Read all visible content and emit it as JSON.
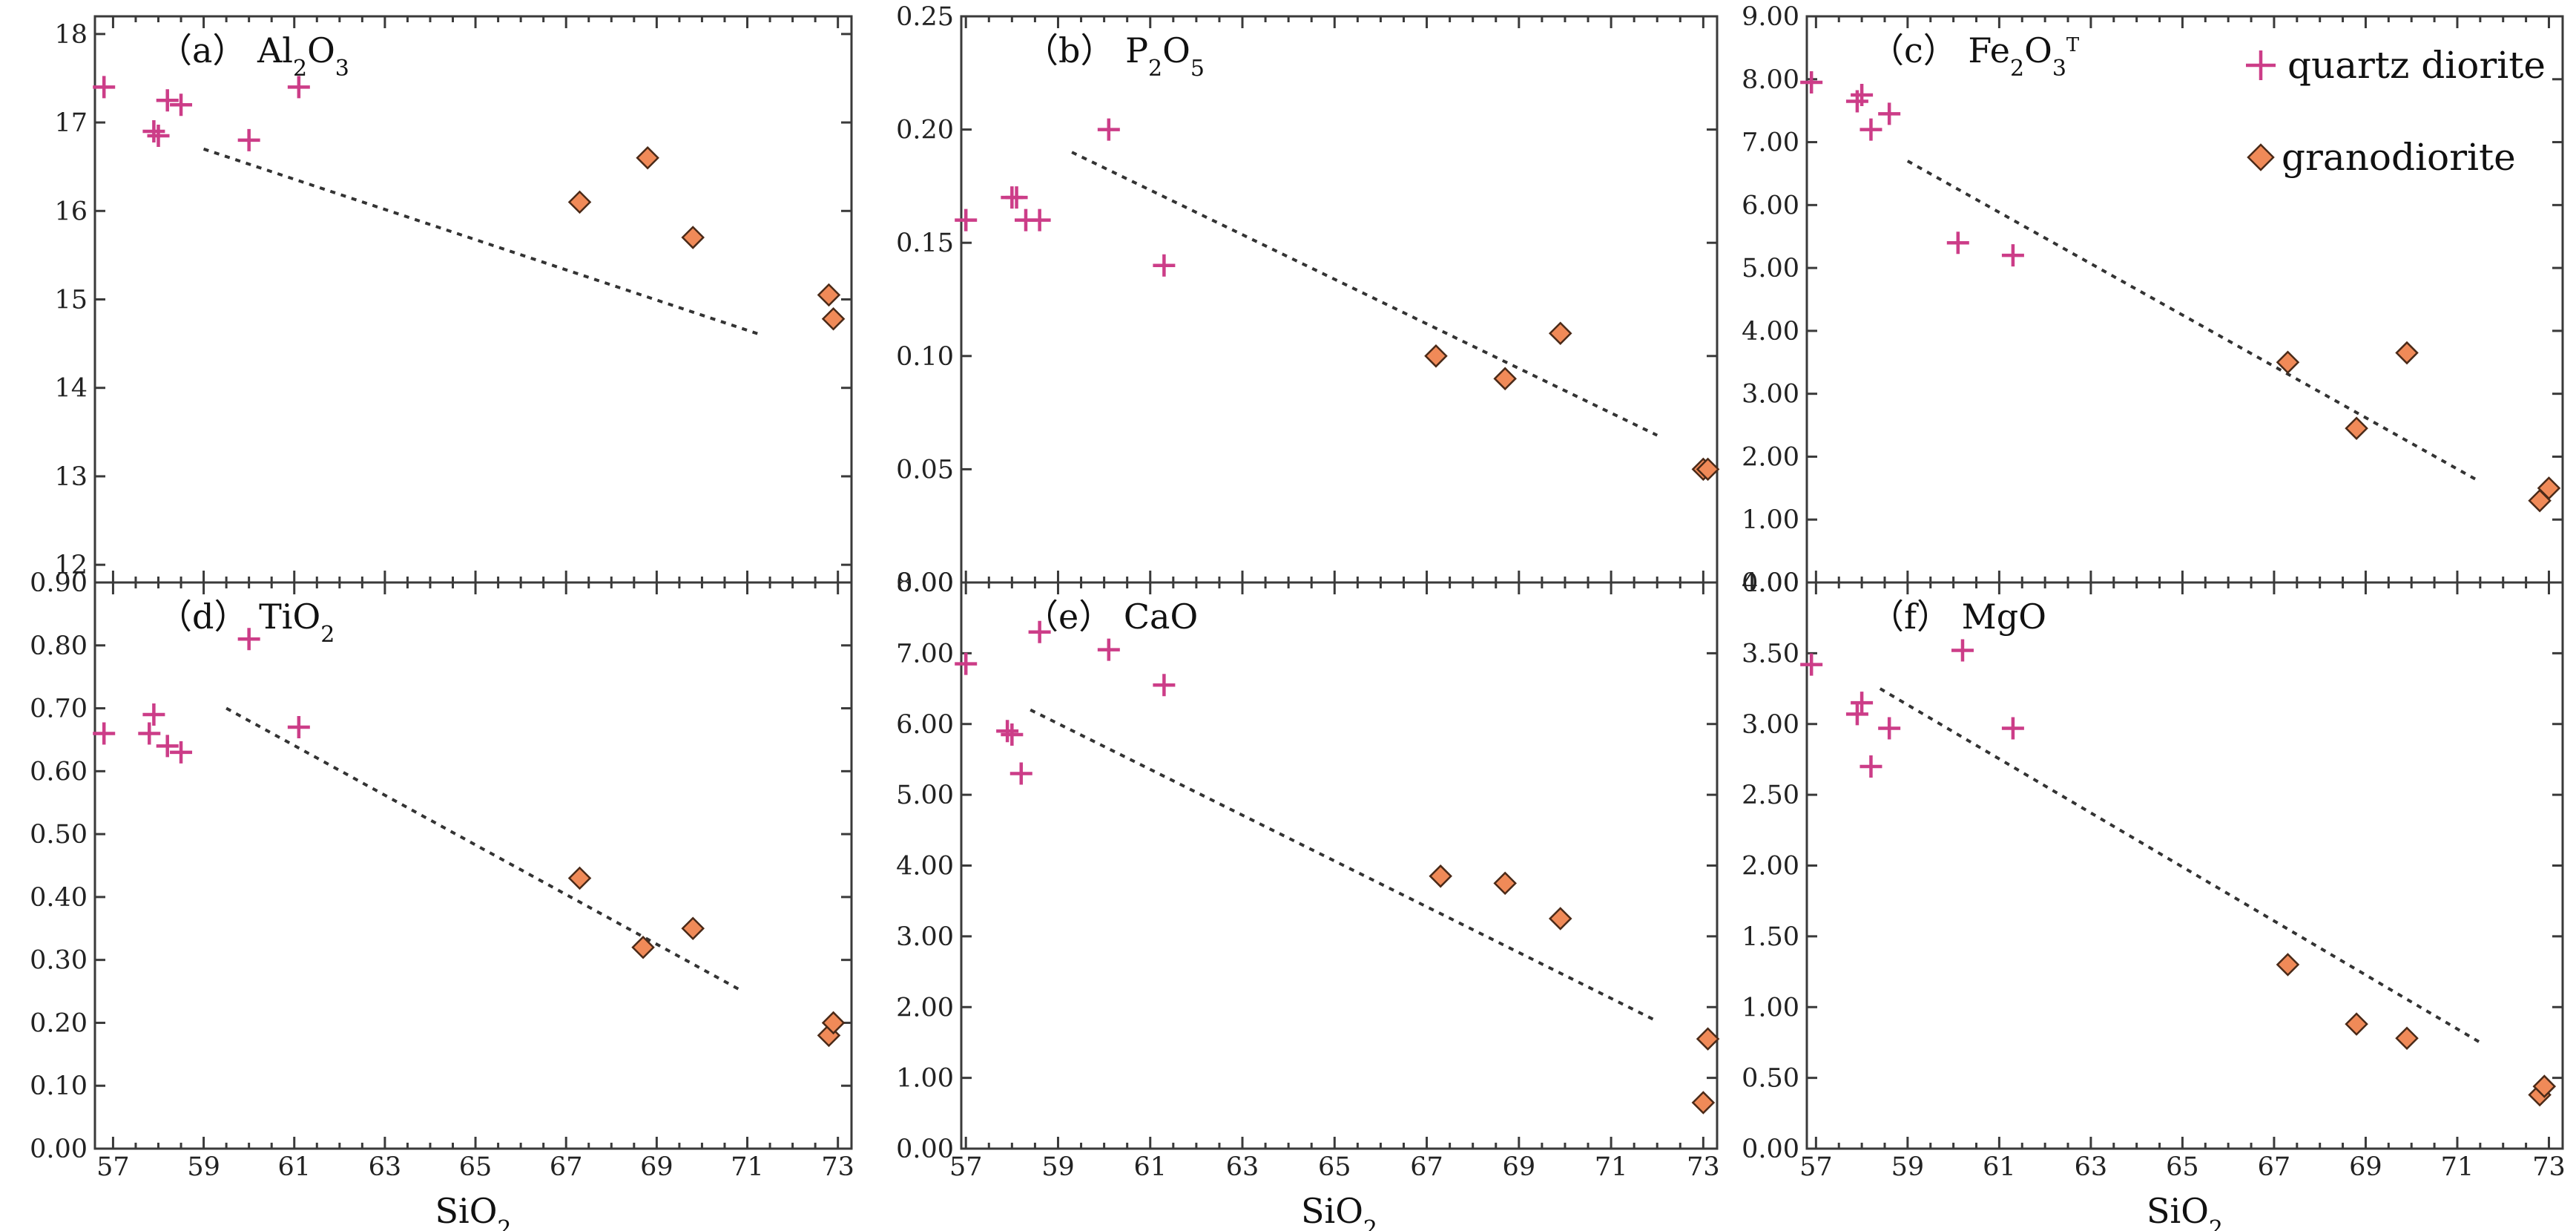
{
  "legend": [
    {
      "label": "quartz diorite",
      "symbol": "plus",
      "color": "#cc3d88"
    },
    {
      "label": "granodiorite",
      "symbol": "diamond",
      "color": "#f08a58"
    }
  ],
  "x_axis_label": {
    "main": "SiO",
    "sub": "2"
  },
  "chart_data": [
    {
      "type": "scatter",
      "panel_label": "（a）",
      "title": [
        {
          "t": "Al"
        },
        {
          "t": "2",
          "s": "sub"
        },
        {
          "t": "O"
        },
        {
          "t": "3",
          "s": "sub"
        }
      ],
      "xlim": [
        56.6,
        73.3
      ],
      "ylim": [
        11.8,
        18.2
      ],
      "xticks": [
        "57",
        "59",
        "61",
        "63",
        "65",
        "67",
        "69",
        "71",
        "73"
      ],
      "yticks": [
        "12",
        "13",
        "14",
        "15",
        "16",
        "17",
        "18"
      ],
      "series": [
        {
          "name": "quartz diorite",
          "points": [
            [
              56.8,
              17.4
            ],
            [
              57.9,
              16.9
            ],
            [
              58.0,
              16.85
            ],
            [
              58.2,
              17.25
            ],
            [
              58.5,
              17.2
            ],
            [
              60.0,
              16.8
            ],
            [
              61.1,
              17.4
            ]
          ]
        },
        {
          "name": "granodiorite",
          "points": [
            [
              67.3,
              16.1
            ],
            [
              68.8,
              16.6
            ],
            [
              69.8,
              15.7
            ],
            [
              72.8,
              15.05
            ],
            [
              72.9,
              14.78
            ]
          ]
        }
      ],
      "trend": [
        [
          59.0,
          16.7
        ],
        [
          71.3,
          14.6
        ]
      ]
    },
    {
      "type": "scatter",
      "panel_label": "（b）",
      "title": [
        {
          "t": "P"
        },
        {
          "t": "2",
          "s": "sub"
        },
        {
          "t": "O"
        },
        {
          "t": "5",
          "s": "sub"
        }
      ],
      "xlim": [
        56.9,
        73.3
      ],
      "ylim": [
        0,
        0.25
      ],
      "xticks": [
        "57",
        "59",
        "61",
        "63",
        "65",
        "67",
        "69",
        "71",
        "73"
      ],
      "yticks": [
        "0.00",
        "0.05",
        "0.10",
        "0.15",
        "0.20",
        "0.25"
      ],
      "series": [
        {
          "name": "quartz diorite",
          "points": [
            [
              57.0,
              0.16
            ],
            [
              58.0,
              0.17
            ],
            [
              58.1,
              0.17
            ],
            [
              58.3,
              0.16
            ],
            [
              58.6,
              0.16
            ],
            [
              60.1,
              0.2
            ],
            [
              61.3,
              0.14
            ]
          ]
        },
        {
          "name": "granodiorite",
          "points": [
            [
              67.2,
              0.1
            ],
            [
              68.7,
              0.09
            ],
            [
              69.9,
              0.11
            ],
            [
              73.0,
              0.05
            ],
            [
              73.1,
              0.05
            ]
          ]
        }
      ],
      "trend": [
        [
          59.3,
          0.19
        ],
        [
          72.0,
          0.065
        ]
      ]
    },
    {
      "type": "scatter",
      "panel_label": "（c）",
      "title": [
        {
          "t": "Fe"
        },
        {
          "t": "2",
          "s": "sub"
        },
        {
          "t": "O"
        },
        {
          "t": "3",
          "s": "sub"
        },
        {
          "t": "T",
          "s": "sup"
        }
      ],
      "xlim": [
        56.8,
        73.3
      ],
      "ylim": [
        0,
        9
      ],
      "xticks": [
        "57",
        "59",
        "61",
        "63",
        "65",
        "67",
        "69",
        "71",
        "73"
      ],
      "yticks": [
        "0.00",
        "1.00",
        "2.00",
        "3.00",
        "4.00",
        "5.00",
        "6.00",
        "7.00",
        "8.00",
        "9.00"
      ],
      "series": [
        {
          "name": "quartz diorite",
          "points": [
            [
              56.9,
              7.95
            ],
            [
              57.9,
              7.65
            ],
            [
              58.0,
              7.75
            ],
            [
              58.2,
              7.2
            ],
            [
              58.6,
              7.45
            ],
            [
              60.1,
              5.4
            ],
            [
              61.3,
              5.2
            ]
          ]
        },
        {
          "name": "granodiorite",
          "points": [
            [
              67.3,
              3.5
            ],
            [
              68.8,
              2.45
            ],
            [
              69.9,
              3.65
            ],
            [
              72.8,
              1.3
            ],
            [
              73.0,
              1.5
            ]
          ]
        }
      ],
      "trend": [
        [
          59.0,
          6.7
        ],
        [
          71.5,
          1.6
        ]
      ]
    },
    {
      "type": "scatter",
      "panel_label": "（d）",
      "title": [
        {
          "t": "TiO"
        },
        {
          "t": "2",
          "s": "sub"
        }
      ],
      "xlim": [
        56.6,
        73.3
      ],
      "ylim": [
        0,
        0.9
      ],
      "xticks": [
        "57",
        "59",
        "61",
        "63",
        "65",
        "67",
        "69",
        "71",
        "73"
      ],
      "yticks": [
        "0.00",
        "0.10",
        "0.20",
        "0.30",
        "0.40",
        "0.50",
        "0.60",
        "0.70",
        "0.80",
        "0.90"
      ],
      "series": [
        {
          "name": "quartz diorite",
          "points": [
            [
              56.8,
              0.66
            ],
            [
              57.8,
              0.66
            ],
            [
              57.9,
              0.69
            ],
            [
              58.2,
              0.64
            ],
            [
              58.5,
              0.63
            ],
            [
              60.0,
              0.81
            ],
            [
              61.1,
              0.67
            ]
          ]
        },
        {
          "name": "granodiorite",
          "points": [
            [
              67.3,
              0.43
            ],
            [
              68.7,
              0.32
            ],
            [
              69.8,
              0.35
            ],
            [
              72.8,
              0.18
            ],
            [
              72.9,
              0.2
            ]
          ]
        }
      ],
      "trend": [
        [
          59.5,
          0.7
        ],
        [
          70.9,
          0.25
        ]
      ]
    },
    {
      "type": "scatter",
      "panel_label": "（e）",
      "title": [
        {
          "t": "CaO"
        }
      ],
      "xlim": [
        56.9,
        73.3
      ],
      "ylim": [
        0,
        8
      ],
      "xticks": [
        "57",
        "59",
        "61",
        "63",
        "65",
        "67",
        "69",
        "71",
        "73"
      ],
      "yticks": [
        "0.00",
        "1.00",
        "2.00",
        "3.00",
        "4.00",
        "5.00",
        "6.00",
        "7.00",
        "8.00"
      ],
      "series": [
        {
          "name": "quartz diorite",
          "points": [
            [
              57.0,
              6.85
            ],
            [
              57.9,
              5.9
            ],
            [
              58.0,
              5.85
            ],
            [
              58.2,
              5.3
            ],
            [
              58.6,
              7.3
            ],
            [
              60.1,
              7.05
            ],
            [
              61.3,
              6.55
            ]
          ]
        },
        {
          "name": "granodiorite",
          "points": [
            [
              67.3,
              3.85
            ],
            [
              68.7,
              3.75
            ],
            [
              69.9,
              3.25
            ],
            [
              73.0,
              0.65
            ],
            [
              73.1,
              1.55
            ]
          ]
        }
      ],
      "trend": [
        [
          58.4,
          6.2
        ],
        [
          72.0,
          1.8
        ]
      ]
    },
    {
      "type": "scatter",
      "panel_label": "（f）",
      "title": [
        {
          "t": "MgO"
        }
      ],
      "xlim": [
        56.8,
        73.3
      ],
      "ylim": [
        0,
        4
      ],
      "xticks": [
        "57",
        "59",
        "61",
        "63",
        "65",
        "67",
        "69",
        "71",
        "73"
      ],
      "yticks": [
        "0.00",
        "0.50",
        "1.00",
        "1.50",
        "2.00",
        "2.50",
        "3.00",
        "3.50",
        "4.00"
      ],
      "series": [
        {
          "name": "quartz diorite",
          "points": [
            [
              56.9,
              3.42
            ],
            [
              57.9,
              3.07
            ],
            [
              58.0,
              3.15
            ],
            [
              58.2,
              2.7
            ],
            [
              58.6,
              2.97
            ],
            [
              60.2,
              3.52
            ],
            [
              61.3,
              2.97
            ]
          ]
        },
        {
          "name": "granodiorite",
          "points": [
            [
              67.3,
              1.3
            ],
            [
              68.8,
              0.88
            ],
            [
              69.9,
              0.78
            ],
            [
              72.8,
              0.38
            ],
            [
              72.9,
              0.44
            ]
          ]
        }
      ],
      "trend": [
        [
          58.4,
          3.25
        ],
        [
          71.5,
          0.75
        ]
      ]
    }
  ]
}
